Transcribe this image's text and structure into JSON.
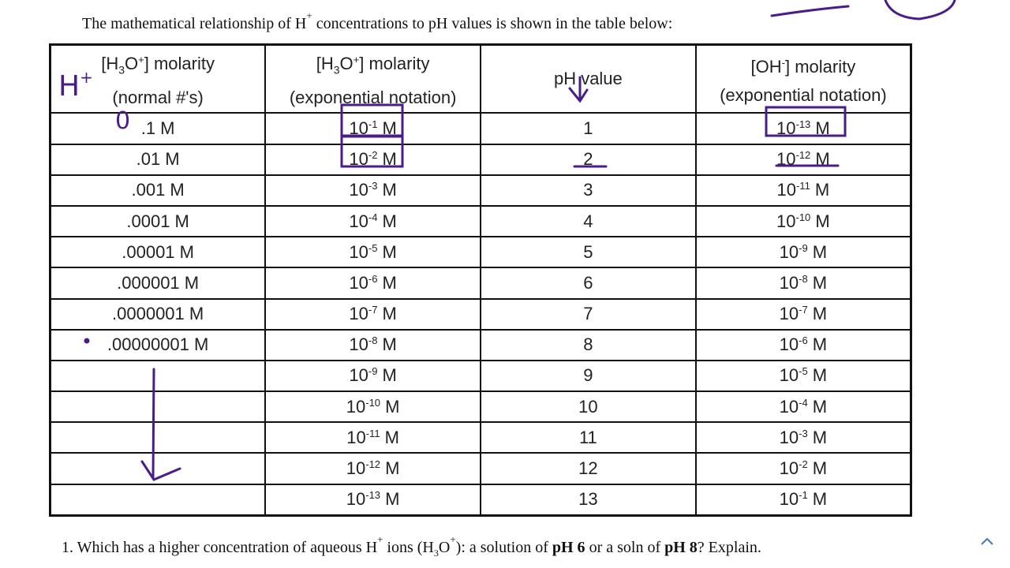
{
  "header": {
    "title": [
      {
        "t": "The mathematical relationship of H"
      },
      {
        "t": "+",
        "s": "sup"
      },
      {
        "t": "  concentrations to pH values is shown in the table below:"
      }
    ]
  },
  "table": {
    "columns": [
      [
        [
          {
            "t": "[H"
          },
          {
            "t": "3",
            "s": "sub"
          },
          {
            "t": "O"
          },
          {
            "t": "+",
            "s": "sup"
          },
          {
            "t": "] molarity"
          }
        ],
        [
          {
            "t": "(normal #'s)"
          }
        ]
      ],
      [
        [
          {
            "t": "[H"
          },
          {
            "t": "3",
            "s": "sub"
          },
          {
            "t": "O"
          },
          {
            "t": "+",
            "s": "sup"
          },
          {
            "t": "] molarity"
          }
        ],
        [
          {
            "t": "(exponential notation)"
          }
        ]
      ],
      [
        [
          {
            "t": "pH value"
          }
        ]
      ],
      [
        [
          {
            "t": "[OH"
          },
          {
            "t": "-",
            "s": "sup"
          },
          {
            "t": "] molarity"
          }
        ],
        [
          {
            "t": "(exponential notation)"
          }
        ]
      ]
    ],
    "rows": [
      [
        ".1 M",
        [
          {
            "t": "10"
          },
          {
            "t": "-1",
            "s": "sup"
          },
          {
            "t": " M"
          }
        ],
        1,
        [
          {
            "t": "10"
          },
          {
            "t": "-13",
            "s": "sup"
          },
          {
            "t": " M"
          }
        ]
      ],
      [
        ".01 M",
        [
          {
            "t": "10"
          },
          {
            "t": "-2",
            "s": "sup"
          },
          {
            "t": " M"
          }
        ],
        2,
        [
          {
            "t": "10"
          },
          {
            "t": "-12",
            "s": "sup"
          },
          {
            "t": " M"
          }
        ]
      ],
      [
        ".001 M",
        [
          {
            "t": "10"
          },
          {
            "t": "-3",
            "s": "sup"
          },
          {
            "t": " M"
          }
        ],
        3,
        [
          {
            "t": "10"
          },
          {
            "t": "-11",
            "s": "sup"
          },
          {
            "t": " M"
          }
        ]
      ],
      [
        ".0001 M",
        [
          {
            "t": "10"
          },
          {
            "t": "-4",
            "s": "sup"
          },
          {
            "t": " M"
          }
        ],
        4,
        [
          {
            "t": "10"
          },
          {
            "t": "-10",
            "s": "sup"
          },
          {
            "t": " M"
          }
        ]
      ],
      [
        ".00001 M",
        [
          {
            "t": "10"
          },
          {
            "t": "-5",
            "s": "sup"
          },
          {
            "t": " M"
          }
        ],
        5,
        [
          {
            "t": "10"
          },
          {
            "t": "-9",
            "s": "sup"
          },
          {
            "t": " M"
          }
        ]
      ],
      [
        ".000001 M",
        [
          {
            "t": "10"
          },
          {
            "t": "-6",
            "s": "sup"
          },
          {
            "t": " M"
          }
        ],
        6,
        [
          {
            "t": "10"
          },
          {
            "t": "-8",
            "s": "sup"
          },
          {
            "t": " M"
          }
        ]
      ],
      [
        ".0000001 M",
        [
          {
            "t": "10"
          },
          {
            "t": "-7",
            "s": "sup"
          },
          {
            "t": " M"
          }
        ],
        7,
        [
          {
            "t": "10"
          },
          {
            "t": "-7",
            "s": "sup"
          },
          {
            "t": " M"
          }
        ]
      ],
      [
        ".00000001 M",
        [
          {
            "t": "10"
          },
          {
            "t": "-8",
            "s": "sup"
          },
          {
            "t": " M"
          }
        ],
        8,
        [
          {
            "t": "10"
          },
          {
            "t": "-6",
            "s": "sup"
          },
          {
            "t": " M"
          }
        ]
      ],
      [
        null,
        [
          {
            "t": "10"
          },
          {
            "t": "-9",
            "s": "sup"
          },
          {
            "t": " M"
          }
        ],
        9,
        [
          {
            "t": "10"
          },
          {
            "t": "-5",
            "s": "sup"
          },
          {
            "t": " M"
          }
        ]
      ],
      [
        null,
        [
          {
            "t": "10"
          },
          {
            "t": "-10",
            "s": "sup"
          },
          {
            "t": " M"
          }
        ],
        10,
        [
          {
            "t": "10"
          },
          {
            "t": "-4",
            "s": "sup"
          },
          {
            "t": " M"
          }
        ]
      ],
      [
        null,
        [
          {
            "t": "10"
          },
          {
            "t": "-11",
            "s": "sup"
          },
          {
            "t": " M"
          }
        ],
        11,
        [
          {
            "t": "10"
          },
          {
            "t": "-3",
            "s": "sup"
          },
          {
            "t": " M"
          }
        ]
      ],
      [
        null,
        [
          {
            "t": "10"
          },
          {
            "t": "-12",
            "s": "sup"
          },
          {
            "t": " M"
          }
        ],
        12,
        [
          {
            "t": "10"
          },
          {
            "t": "-2",
            "s": "sup"
          },
          {
            "t": " M"
          }
        ]
      ],
      [
        null,
        [
          {
            "t": "10"
          },
          {
            "t": "-13",
            "s": "sup"
          },
          {
            "t": " M"
          }
        ],
        13,
        [
          {
            "t": "10"
          },
          {
            "t": "-1",
            "s": "sup"
          },
          {
            "t": " M"
          }
        ]
      ]
    ]
  },
  "annotations": {
    "ion": "H",
    "ion_charge": "+",
    "leading_zero": "0"
  },
  "question": [
    {
      "t": "1.  Which has a higher concentration of aqueous H"
    },
    {
      "t": "+",
      "s": "sup"
    },
    {
      "t": " ions (H"
    },
    {
      "t": "3",
      "s": "sub"
    },
    {
      "t": "O"
    },
    {
      "t": "+",
      "s": "sup"
    },
    {
      "t": "):  a solution of "
    },
    {
      "t": "pH 6",
      "s": "bold"
    },
    {
      "t": " or a soln of "
    },
    {
      "t": "pH 8",
      "s": "bold"
    },
    {
      "t": "?  Explain."
    }
  ]
}
